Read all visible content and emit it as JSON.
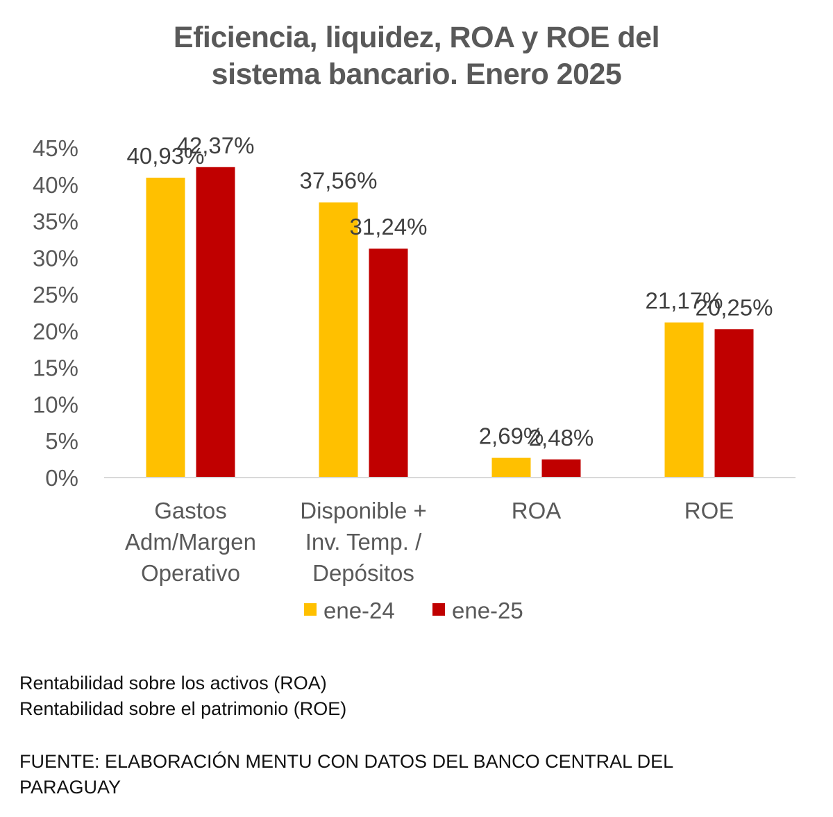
{
  "title_lines": [
    "Eficiencia, liquidez, ROA y ROE del",
    "sistema bancario. Enero 2025"
  ],
  "colors": {
    "ene-24": "#FFC000",
    "ene-25": "#C00000",
    "axis": "#D9D9D9",
    "text": "#595959"
  },
  "chart_data": {
    "type": "bar",
    "title": "Eficiencia, liquidez, ROA y ROE del sistema bancario. Enero 2025",
    "categories": [
      [
        "Gastos",
        "Adm/Margen",
        "Operativo"
      ],
      [
        "Disponible +",
        "Inv. Temp. /",
        "Depósitos"
      ],
      [
        "ROA"
      ],
      [
        "ROE"
      ]
    ],
    "series": [
      {
        "name": "ene-24",
        "values": [
          40.93,
          37.56,
          2.69,
          21.17
        ],
        "labels": [
          "40,93%",
          "37,56%",
          "2,69%",
          "21,17%"
        ]
      },
      {
        "name": "ene-25",
        "values": [
          42.37,
          31.24,
          2.48,
          20.25
        ],
        "labels": [
          "42,37%",
          "31,24%",
          "2,48%",
          "20,25%"
        ]
      }
    ],
    "ylim": [
      0,
      45
    ],
    "yticks": [
      "0%",
      "5%",
      "10%",
      "15%",
      "20%",
      "25%",
      "30%",
      "35%",
      "40%",
      "45%"
    ],
    "ytick_values": [
      0,
      5,
      10,
      15,
      20,
      25,
      30,
      35,
      40,
      45
    ],
    "xlabel": "",
    "ylabel": "",
    "grid": false,
    "legend": "bottom"
  },
  "notes": [
    "Rentabilidad sobre los activos (ROA)",
    "Rentabilidad sobre el patrimonio (ROE)"
  ],
  "source": "FUENTE: ELABORACIÓN MENTU CON DATOS DEL BANCO CENTRAL DEL PARAGUAY"
}
